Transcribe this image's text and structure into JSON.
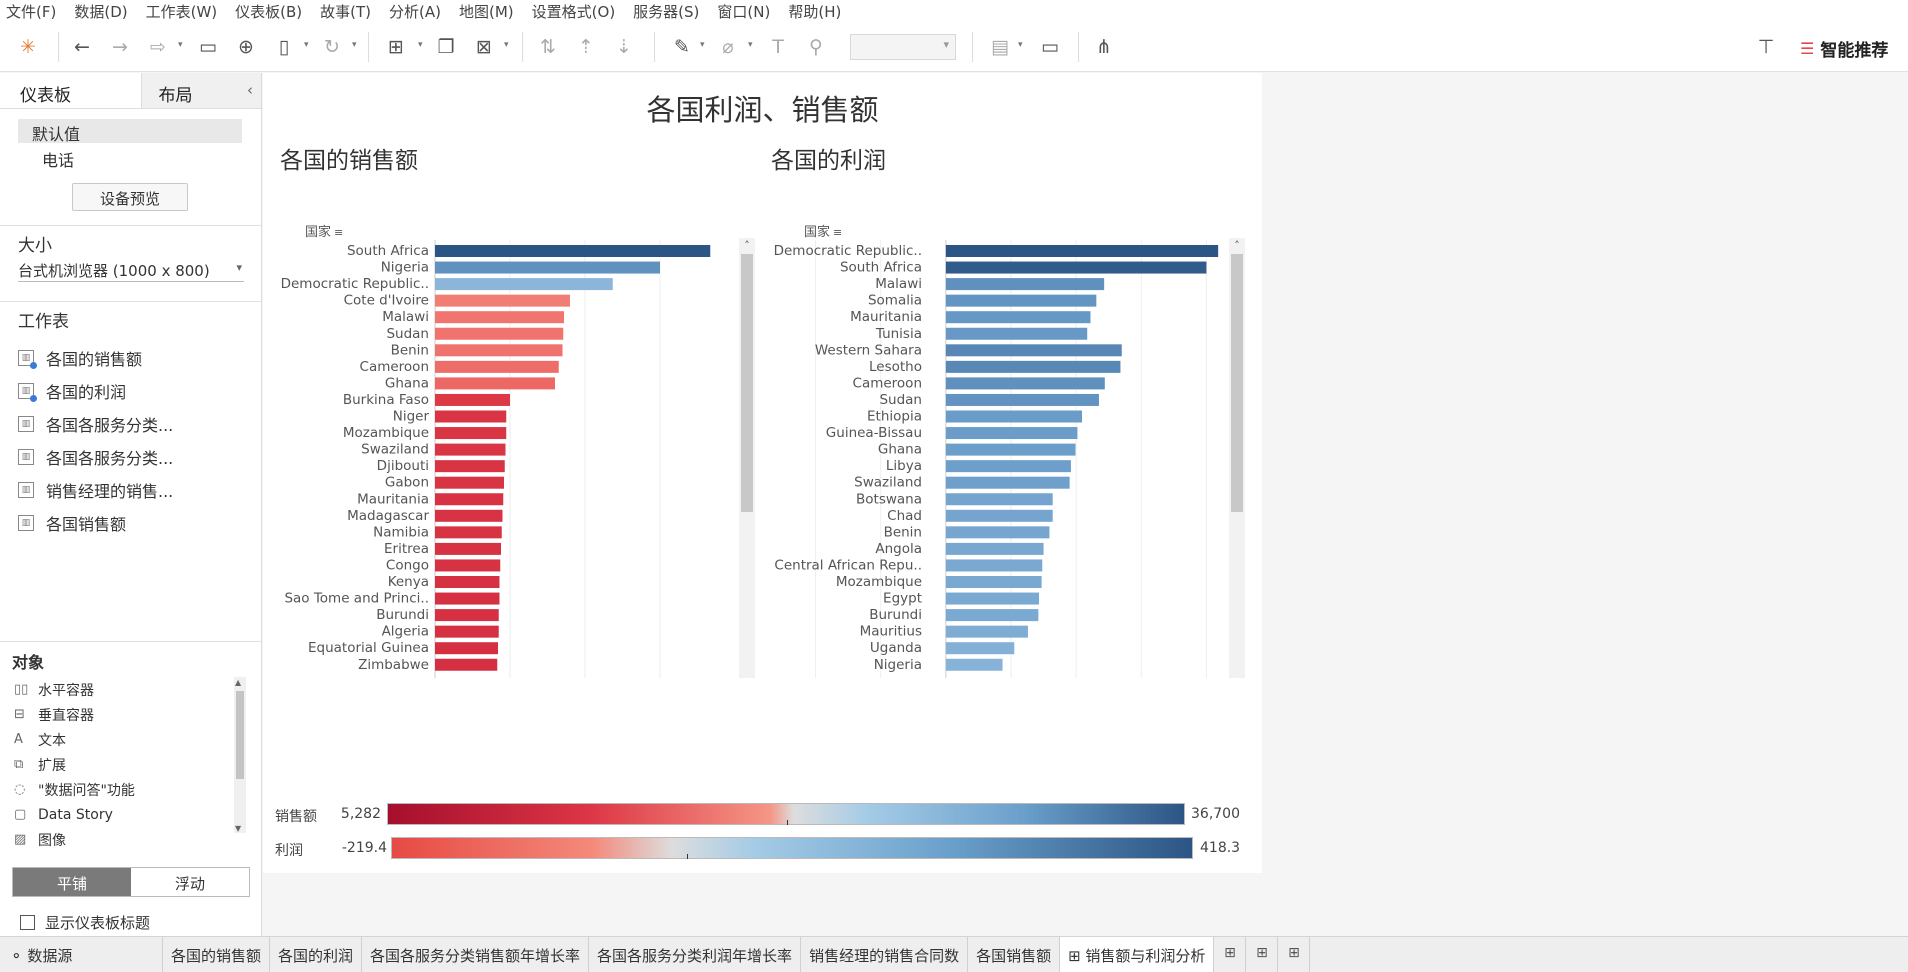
{
  "menu": [
    "文件(F)",
    "数据(D)",
    "工作表(W)",
    "仪表板(B)",
    "故事(T)",
    "分析(A)",
    "地图(M)",
    "设置格式(O)",
    "服务器(S)",
    "窗口(N)",
    "帮助(H)"
  ],
  "toolbar": {
    "smart_recommend": "智能推荐"
  },
  "left_panel": {
    "tabs": [
      "仪表板",
      "布局"
    ],
    "device_default": "默认值",
    "device_phone": "电话",
    "device_preview": "设备预览",
    "size_title": "大小",
    "size_value": "台式机浏览器 (1000 x 800)",
    "worksheets_title": "工作表",
    "worksheets": [
      "各国的销售额",
      "各国的利润",
      "各国各服务分类...",
      "各国各服务分类...",
      "销售经理的销售...",
      "各国销售额"
    ],
    "objects_title": "对象",
    "objects": [
      {
        "icon": "horizontal-container-icon",
        "label": "水平容器"
      },
      {
        "icon": "vertical-container-icon",
        "label": "垂直容器"
      },
      {
        "icon": "text-icon",
        "label": "文本"
      },
      {
        "icon": "extension-icon",
        "label": "扩展"
      },
      {
        "icon": "ask-data-icon",
        "label": "\"数据问答\"功能"
      },
      {
        "icon": "data-story-icon",
        "label": "Data Story"
      },
      {
        "icon": "image-icon",
        "label": "图像"
      }
    ],
    "tile_label": "平铺",
    "float_label": "浮动",
    "show_title_label": "显示仪表板标题"
  },
  "dashboard": {
    "title": "各国利润、销售额",
    "sales_sheet_title": "各国的销售额",
    "profit_sheet_title": "各国的利润",
    "legend_sales_label": "销售额",
    "legend_sales_min": "5,282",
    "legend_sales_max": "36,700",
    "legend_profit_label": "利润",
    "legend_profit_min": "-219.4",
    "legend_profit_max": "418.3"
  },
  "chart_data": [
    {
      "type": "bar",
      "orientation": "horizontal",
      "title": "各国的销售额",
      "row_header": "国家",
      "xlabel": "销售额",
      "xlim": [
        0,
        40000
      ],
      "x_ticks": [
        "0K",
        "10K",
        "20K",
        "30K"
      ],
      "x_tick_values": [
        0,
        10000,
        20000,
        30000
      ],
      "color_domain": [
        5282,
        36700
      ],
      "color_midpoint": 20991,
      "categories": [
        "South Africa",
        "Nigeria",
        "Democratic Republic..",
        "Cote d'Ivoire",
        "Malawi",
        "Sudan",
        "Benin",
        "Cameroon",
        "Ghana",
        "Burkina Faso",
        "Niger",
        "Mozambique",
        "Swaziland",
        "Djibouti",
        "Gabon",
        "Mauritania",
        "Madagascar",
        "Namibia",
        "Eritrea",
        "Congo",
        "Kenya",
        "Sao Tome and Princi..",
        "Burundi",
        "Algeria",
        "Equatorial Guinea",
        "Zimbabwe"
      ],
      "values": [
        36700,
        30000,
        23700,
        18000,
        17200,
        17100,
        17000,
        16500,
        16000,
        10000,
        9500,
        9500,
        9400,
        9300,
        9200,
        9100,
        9000,
        8900,
        8800,
        8700,
        8600,
        8600,
        8500,
        8500,
        8400,
        8300
      ]
    },
    {
      "type": "bar",
      "orientation": "horizontal",
      "title": "各国的利润",
      "row_header": "国家",
      "xlabel": "利润",
      "xlim": [
        -250,
        450
      ],
      "x_ticks": [
        "-200",
        "-100",
        "0",
        "100",
        "200",
        "300",
        "400"
      ],
      "x_tick_values": [
        -200,
        -100,
        0,
        100,
        200,
        300,
        400
      ],
      "color_domain": [
        -219.4,
        418.3
      ],
      "color_midpoint": 0,
      "categories": [
        "Democratic Republic..",
        "South Africa",
        "Malawi",
        "Somalia",
        "Mauritania",
        "Tunisia",
        "Western Sahara",
        "Lesotho",
        "Cameroon",
        "Sudan",
        "Ethiopia",
        "Guinea-Bissau",
        "Ghana",
        "Libya",
        "Swaziland",
        "Botswana",
        "Chad",
        "Benin",
        "Angola",
        "Central African Repu..",
        "Mozambique",
        "Egypt",
        "Burundi",
        "Mauritius",
        "Uganda",
        "Nigeria"
      ],
      "values": [
        418,
        400,
        243,
        231,
        222,
        217,
        270,
        268,
        244,
        235,
        209,
        202,
        199,
        192,
        190,
        164,
        164,
        159,
        150,
        148,
        147,
        143,
        142,
        126,
        105,
        87
      ]
    }
  ],
  "bottom_tabs": [
    "数据源",
    "各国的销售额",
    "各国的利润",
    "各国各服务分类销售额年增长率",
    "各国各服务分类利润年增长率",
    "销售经理的销售合同数",
    "各国销售额",
    "⊞ 销售额与利润分析"
  ]
}
